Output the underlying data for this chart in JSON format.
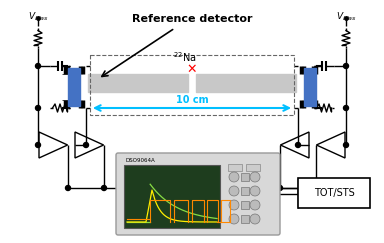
{
  "bg_color": "#ffffff",
  "wire_color": "#000000",
  "detector_color": "#4472C4",
  "scintillator_color": "#c8c8c8",
  "arrow_color": "#FFA500",
  "dist_color": "#00BFFF",
  "scope_bg": "#2d4a2d",
  "scope_border": "#bbbbbb",
  "tot_sts_label": "TOT/STS",
  "scope_label": "DSO9064A",
  "ref_label": "Reference detector",
  "source_label_sup": "22",
  "source_label_base": "Na",
  "dist_label": "10 cm",
  "vbias": "V_bias"
}
